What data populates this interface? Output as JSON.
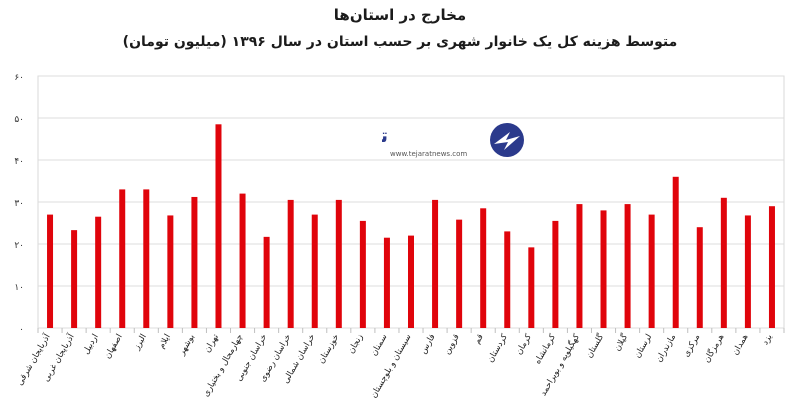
{
  "chart_data": {
    "type": "bar",
    "title": "مخارج در استان‌ها",
    "subtitle": "متوسط هزینه کل یک خانوار شهری بر حسب استان در سال ۱۳۹۶ (میلیون تومان)",
    "categories": [
      "آذربایجان شرقی",
      "آذربایجان غربی",
      "اردبیل",
      "اصفهان",
      "البرز",
      "ایلام",
      "بوشهر",
      "تهران",
      "چهارمحال و بختیاری",
      "خراسان جنوبی",
      "خراسان رضوی",
      "خراسان شمالی",
      "خوزستان",
      "زنجان",
      "سمنان",
      "سیستان و بلوچستان",
      "فارس",
      "قزوین",
      "قم",
      "کردستان",
      "کرمان",
      "کرمانشاه",
      "کهگیلویه و بویراحمد",
      "گلستان",
      "گیلان",
      "لرستان",
      "مازندران",
      "مرکزی",
      "هرمزگان",
      "همدان",
      "یزد"
    ],
    "values": [
      27,
      23.3,
      26.5,
      33,
      33,
      26.8,
      31.2,
      48.5,
      32,
      21.7,
      30.5,
      27,
      30.5,
      25.5,
      21.5,
      22,
      30.5,
      25.8,
      28.5,
      23,
      19.2,
      25.5,
      29.5,
      28,
      29.5,
      27,
      36,
      24,
      31,
      26.8,
      29
    ],
    "y_ticks": [
      "۰",
      "۱۰",
      "۲۰",
      "۳۰",
      "۴۰",
      "۵۰",
      "۶۰"
    ],
    "ylim": [
      0,
      60
    ],
    "bar_color": "#e0040b",
    "grid": true
  },
  "watermark": {
    "brand": "تجارت نیوز",
    "url": "www.tejaratnews.com",
    "brand_color": "#2b3a8c",
    "accent_color": "#d8232a"
  }
}
